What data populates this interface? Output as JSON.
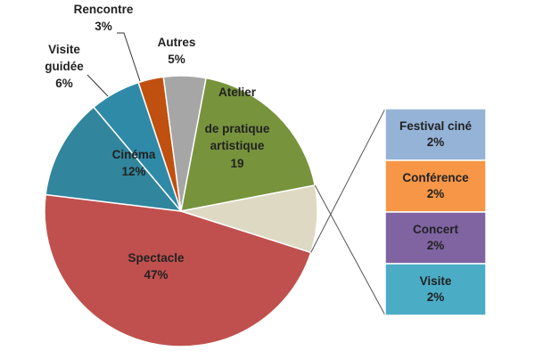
{
  "chart_data": {
    "type": "pie",
    "title": "",
    "colors": {
      "spectacle": "#c0504d",
      "cinema": "#31859c",
      "visite_guidee": "#2f8aa8",
      "rencontre": "#c0500f",
      "autres": "#a6a6a6",
      "atelier": "#77933c",
      "other_group": "#ddd9c3",
      "breakdown_festival": "#95b3d7",
      "breakdown_conference": "#f79646",
      "breakdown_concert": "#8064a2",
      "breakdown_visite": "#4bacc6"
    },
    "slices": [
      {
        "key": "spectacle",
        "lines": [
          "Spectacle",
          "47%"
        ],
        "value": 47
      },
      {
        "key": "cinema",
        "lines": [
          "Cinéma",
          "12%"
        ],
        "value": 12
      },
      {
        "key": "visite_guidee",
        "lines": [
          "Visite",
          "guidée",
          "6%"
        ],
        "value": 6
      },
      {
        "key": "rencontre",
        "lines": [
          "Rencontre",
          "3%"
        ],
        "value": 3
      },
      {
        "key": "autres",
        "lines": [
          "Autres",
          "5%"
        ],
        "value": 5
      },
      {
        "key": "atelier",
        "lines": [
          "Atelier",
          "de pratique",
          "artistique",
          "19"
        ],
        "value": 19
      },
      {
        "key": "other_group",
        "lines": [],
        "value": 8
      }
    ],
    "breakdown": [
      {
        "key": "breakdown_festival",
        "lines": [
          "Festival ciné",
          "2%"
        ],
        "value": 2
      },
      {
        "key": "breakdown_conference",
        "lines": [
          "Conférence",
          "2%"
        ],
        "value": 2
      },
      {
        "key": "breakdown_concert",
        "lines": [
          "Concert",
          "2%"
        ],
        "value": 2
      },
      {
        "key": "breakdown_visite",
        "lines": [
          "Visite",
          "2%"
        ],
        "value": 2
      }
    ]
  }
}
